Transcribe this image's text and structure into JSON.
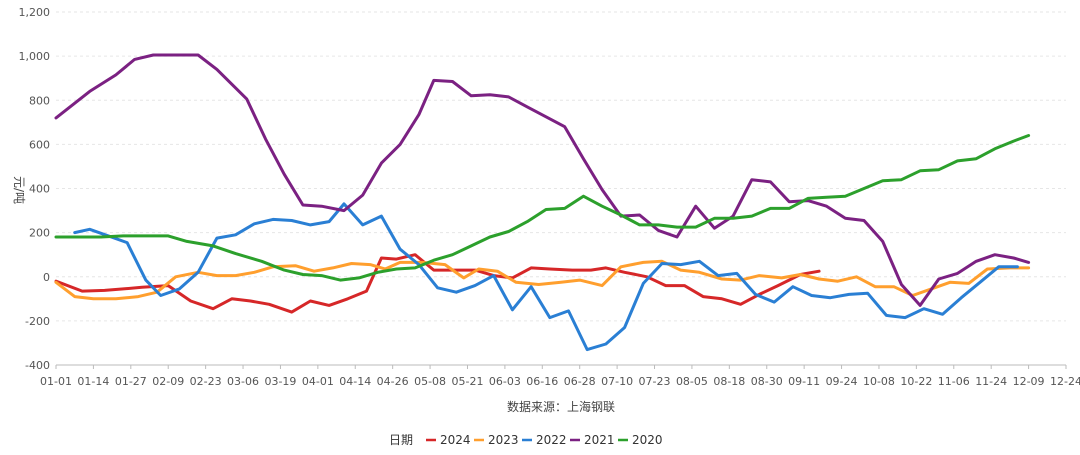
{
  "chart_data": {
    "type": "line",
    "ylabel": "元/吨",
    "xlabel": "数据来源：上海钢联",
    "ylim": [
      -400,
      1200
    ],
    "yticks": [
      -400,
      -200,
      0,
      200,
      400,
      600,
      800,
      "1,000",
      "1,200"
    ],
    "categories": [
      "01-01",
      "01-14",
      "01-27",
      "02-09",
      "02-23",
      "03-06",
      "03-19",
      "04-01",
      "04-14",
      "04-26",
      "05-08",
      "05-21",
      "06-03",
      "06-16",
      "06-28",
      "07-10",
      "07-23",
      "08-05",
      "08-18",
      "08-30",
      "09-11",
      "09-24",
      "10-08",
      "10-22",
      "11-06",
      "11-24",
      "12-09",
      "12-24"
    ],
    "grid": true,
    "legend_title": "日期",
    "legend_position": "bottom",
    "series": [
      {
        "name": "2024",
        "color": "#d62728",
        "points": [
          [
            0,
            -20
          ],
          [
            0.7,
            -65
          ],
          [
            1.3,
            -62
          ],
          [
            1.8,
            -55
          ],
          [
            2.3,
            -48
          ],
          [
            3.0,
            -40
          ],
          [
            3.6,
            -110
          ],
          [
            4.2,
            -145
          ],
          [
            4.7,
            -100
          ],
          [
            5.2,
            -110
          ],
          [
            5.7,
            -125
          ],
          [
            6.3,
            -160
          ],
          [
            6.8,
            -110
          ],
          [
            7.3,
            -130
          ],
          [
            7.8,
            -100
          ],
          [
            8.3,
            -65
          ],
          [
            8.7,
            85
          ],
          [
            9.1,
            80
          ],
          [
            9.6,
            100
          ],
          [
            10.1,
            30
          ],
          [
            10.7,
            30
          ],
          [
            11.2,
            30
          ],
          [
            11.7,
            5
          ],
          [
            12.2,
            -5
          ],
          [
            12.7,
            40
          ],
          [
            13.2,
            35
          ],
          [
            13.8,
            30
          ],
          [
            14.3,
            30
          ],
          [
            14.7,
            40
          ],
          [
            15.2,
            20
          ],
          [
            15.8,
            0
          ],
          [
            16.3,
            -40
          ],
          [
            16.8,
            -40
          ],
          [
            17.3,
            -90
          ],
          [
            17.8,
            -100
          ],
          [
            18.3,
            -125
          ],
          [
            18.8,
            -80
          ],
          [
            19.3,
            -40
          ],
          [
            19.9,
            10
          ],
          [
            20.4,
            25
          ]
        ]
      },
      {
        "name": "2023",
        "color": "#ff9f2e",
        "points": [
          [
            0,
            -25
          ],
          [
            0.5,
            -90
          ],
          [
            1.0,
            -100
          ],
          [
            1.6,
            -100
          ],
          [
            2.2,
            -90
          ],
          [
            2.7,
            -70
          ],
          [
            3.2,
            0
          ],
          [
            3.8,
            20
          ],
          [
            4.3,
            5
          ],
          [
            4.8,
            5
          ],
          [
            5.3,
            20
          ],
          [
            5.8,
            45
          ],
          [
            6.4,
            50
          ],
          [
            6.9,
            25
          ],
          [
            7.4,
            40
          ],
          [
            7.9,
            60
          ],
          [
            8.4,
            55
          ],
          [
            8.8,
            35
          ],
          [
            9.2,
            65
          ],
          [
            9.8,
            65
          ],
          [
            10.4,
            55
          ],
          [
            10.9,
            -5
          ],
          [
            11.3,
            35
          ],
          [
            11.8,
            25
          ],
          [
            12.3,
            -25
          ],
          [
            12.9,
            -35
          ],
          [
            13.5,
            -25
          ],
          [
            14.0,
            -15
          ],
          [
            14.6,
            -40
          ],
          [
            15.1,
            45
          ],
          [
            15.7,
            65
          ],
          [
            16.2,
            70
          ],
          [
            16.7,
            30
          ],
          [
            17.2,
            20
          ],
          [
            17.8,
            -10
          ],
          [
            18.3,
            -15
          ],
          [
            18.8,
            5
          ],
          [
            19.4,
            -5
          ],
          [
            19.9,
            10
          ],
          [
            20.4,
            -10
          ],
          [
            20.9,
            -20
          ],
          [
            21.4,
            0
          ],
          [
            21.9,
            -45
          ],
          [
            22.4,
            -45
          ],
          [
            22.9,
            -85
          ],
          [
            23.4,
            -55
          ],
          [
            23.9,
            -25
          ],
          [
            24.4,
            -30
          ],
          [
            24.9,
            35
          ],
          [
            25.5,
            40
          ],
          [
            26,
            40
          ]
        ]
      },
      {
        "name": "2022",
        "color": "#2a7fd4",
        "points": [
          [
            0.5,
            200
          ],
          [
            0.9,
            215
          ],
          [
            1.4,
            185
          ],
          [
            1.9,
            155
          ],
          [
            2.4,
            -15
          ],
          [
            2.8,
            -85
          ],
          [
            3.3,
            -55
          ],
          [
            3.8,
            20
          ],
          [
            4.3,
            175
          ],
          [
            4.8,
            190
          ],
          [
            5.3,
            240
          ],
          [
            5.8,
            260
          ],
          [
            6.3,
            255
          ],
          [
            6.8,
            235
          ],
          [
            7.3,
            250
          ],
          [
            7.7,
            330
          ],
          [
            8.2,
            235
          ],
          [
            8.7,
            275
          ],
          [
            9.2,
            125
          ],
          [
            9.7,
            55
          ],
          [
            10.2,
            -50
          ],
          [
            10.7,
            -70
          ],
          [
            11.2,
            -40
          ],
          [
            11.7,
            5
          ],
          [
            12.2,
            -150
          ],
          [
            12.7,
            -45
          ],
          [
            13.2,
            -185
          ],
          [
            13.7,
            -155
          ],
          [
            14.2,
            -330
          ],
          [
            14.7,
            -305
          ],
          [
            15.2,
            -230
          ],
          [
            15.7,
            -30
          ],
          [
            16.2,
            60
          ],
          [
            16.7,
            55
          ],
          [
            17.2,
            70
          ],
          [
            17.7,
            5
          ],
          [
            18.2,
            15
          ],
          [
            18.7,
            -80
          ],
          [
            19.2,
            -115
          ],
          [
            19.7,
            -45
          ],
          [
            20.2,
            -85
          ],
          [
            20.7,
            -95
          ],
          [
            21.2,
            -80
          ],
          [
            21.7,
            -75
          ],
          [
            22.2,
            -175
          ],
          [
            22.7,
            -185
          ],
          [
            23.2,
            -145
          ],
          [
            23.7,
            -170
          ],
          [
            24.2,
            -95
          ],
          [
            24.7,
            -25
          ],
          [
            25.2,
            45
          ],
          [
            25.7,
            45
          ]
        ]
      },
      {
        "name": "2021",
        "color": "#7b2182",
        "points": [
          [
            0,
            720
          ],
          [
            0.9,
            840
          ],
          [
            1.6,
            915
          ],
          [
            2.1,
            985
          ],
          [
            2.6,
            1005
          ],
          [
            3.3,
            1005
          ],
          [
            3.8,
            1005
          ],
          [
            4.3,
            940
          ],
          [
            5.1,
            805
          ],
          [
            5.6,
            625
          ],
          [
            6.1,
            465
          ],
          [
            6.6,
            325
          ],
          [
            7.1,
            320
          ],
          [
            7.7,
            300
          ],
          [
            8.2,
            370
          ],
          [
            8.7,
            515
          ],
          [
            9.2,
            600
          ],
          [
            9.7,
            735
          ],
          [
            10.1,
            890
          ],
          [
            10.6,
            885
          ],
          [
            11.1,
            820
          ],
          [
            11.6,
            825
          ],
          [
            12.1,
            815
          ],
          [
            12.6,
            770
          ],
          [
            13.1,
            725
          ],
          [
            13.6,
            680
          ],
          [
            14.1,
            535
          ],
          [
            14.6,
            395
          ],
          [
            15.1,
            275
          ],
          [
            15.6,
            280
          ],
          [
            16.1,
            210
          ],
          [
            16.6,
            180
          ],
          [
            17.1,
            320
          ],
          [
            17.6,
            220
          ],
          [
            18.1,
            275
          ],
          [
            18.6,
            440
          ],
          [
            19.1,
            430
          ],
          [
            19.6,
            340
          ],
          [
            20.1,
            345
          ],
          [
            20.6,
            320
          ],
          [
            21.1,
            265
          ],
          [
            21.6,
            255
          ],
          [
            22.1,
            160
          ],
          [
            22.6,
            -35
          ],
          [
            23.1,
            -130
          ],
          [
            23.6,
            -10
          ],
          [
            24.1,
            15
          ],
          [
            24.6,
            70
          ],
          [
            25.1,
            100
          ],
          [
            25.6,
            85
          ],
          [
            26,
            65
          ]
        ]
      },
      {
        "name": "2020",
        "color": "#2ca02c",
        "points": [
          [
            0,
            180
          ],
          [
            1.2,
            180
          ],
          [
            1.8,
            185
          ],
          [
            3.0,
            185
          ],
          [
            3.5,
            160
          ],
          [
            4.2,
            140
          ],
          [
            4.8,
            105
          ],
          [
            5.5,
            70
          ],
          [
            6.1,
            30
          ],
          [
            6.6,
            10
          ],
          [
            7.1,
            5
          ],
          [
            7.6,
            -15
          ],
          [
            8.1,
            -5
          ],
          [
            8.6,
            20
          ],
          [
            9.1,
            35
          ],
          [
            9.6,
            40
          ],
          [
            10.1,
            75
          ],
          [
            10.6,
            100
          ],
          [
            11.1,
            140
          ],
          [
            11.6,
            180
          ],
          [
            12.1,
            205
          ],
          [
            12.6,
            250
          ],
          [
            13.1,
            305
          ],
          [
            13.6,
            310
          ],
          [
            14.1,
            365
          ],
          [
            14.6,
            320
          ],
          [
            15.1,
            280
          ],
          [
            15.6,
            235
          ],
          [
            16.1,
            235
          ],
          [
            16.6,
            225
          ],
          [
            17.1,
            225
          ],
          [
            17.6,
            265
          ],
          [
            18.1,
            265
          ],
          [
            18.6,
            275
          ],
          [
            19.1,
            310
          ],
          [
            19.6,
            310
          ],
          [
            20.1,
            355
          ],
          [
            20.6,
            360
          ],
          [
            21.1,
            365
          ],
          [
            21.6,
            400
          ],
          [
            22.1,
            435
          ],
          [
            22.6,
            440
          ],
          [
            23.1,
            480
          ],
          [
            23.6,
            485
          ],
          [
            24.1,
            525
          ],
          [
            24.6,
            535
          ],
          [
            25.1,
            580
          ],
          [
            25.6,
            615
          ],
          [
            26,
            640
          ]
        ]
      }
    ]
  }
}
